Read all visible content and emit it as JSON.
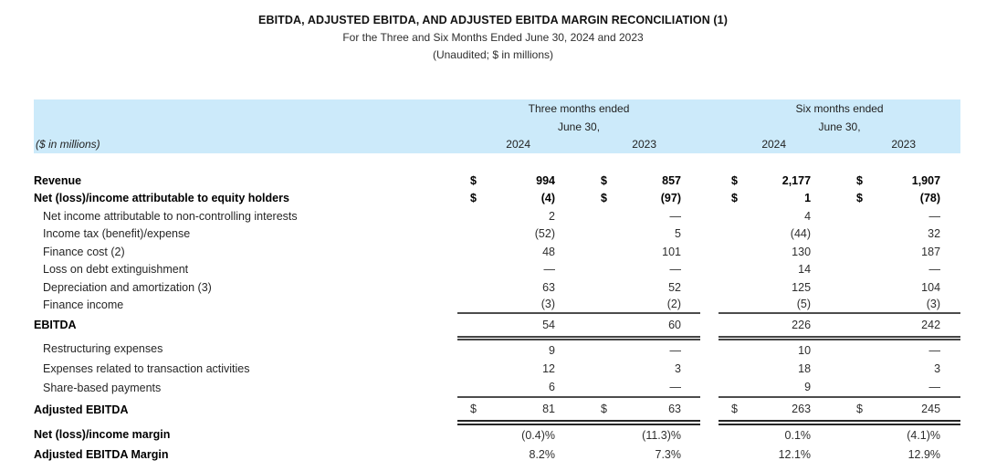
{
  "header": {
    "line1": "EBITDA, ADJUSTED EBITDA, AND ADJUSTED EBITDA MARGIN RECONCILIATION (1)",
    "line2": "For the Three and Six Months Ended June 30, 2024 and 2023",
    "line3": "(Unaudited; $ in millions)"
  },
  "colors": {
    "band_background": "#cceafa",
    "rule_single": "#4c4c4c",
    "rule_double": "#454545",
    "rule_thick": "#262626"
  },
  "table": {
    "header": {
      "caption_left": "($ in millions)",
      "groups": [
        {
          "line1": "Three months ended",
          "line2": "June 30,",
          "years": [
            "2024",
            "2023"
          ]
        },
        {
          "line1": "Six months ended",
          "line2": "June 30,",
          "years": [
            "2024",
            "2023"
          ]
        }
      ]
    },
    "rows": [
      {
        "label": "Revenue",
        "bold": true,
        "dollar": true,
        "bold_values": true,
        "values": [
          "994",
          "857",
          "2,177",
          "1,907"
        ]
      },
      {
        "label": "Net (loss)/income attributable to equity holders",
        "bold": true,
        "dollar": true,
        "bold_values": true,
        "values": [
          "(4)",
          "(97)",
          "1",
          "(78)"
        ]
      },
      {
        "label": "Net income attributable to non-controlling interests",
        "indent": true,
        "values": [
          "2",
          "—",
          "4",
          "—"
        ]
      },
      {
        "label": "Income tax (benefit)/expense",
        "indent": true,
        "values": [
          "(52)",
          "5",
          "(44)",
          "32"
        ]
      },
      {
        "label": "Finance cost (2)",
        "indent": true,
        "values": [
          "48",
          "101",
          "130",
          "187"
        ]
      },
      {
        "label": "Loss on debt extinguishment",
        "indent": true,
        "values": [
          "—",
          "—",
          "14",
          "—"
        ]
      },
      {
        "label": "Depreciation and amortization (3)",
        "indent": true,
        "values": [
          "63",
          "52",
          "125",
          "104"
        ]
      },
      {
        "label": "Finance income",
        "indent": true,
        "values": [
          "(3)",
          "(2)",
          "(5)",
          "(3)"
        ],
        "rule": "single"
      },
      {
        "label": "EBITDA",
        "bold": true,
        "values": [
          "54",
          "60",
          "226",
          "242"
        ],
        "rule": "double"
      },
      {
        "label": "Restructuring expenses",
        "indent": true,
        "values": [
          "9",
          "—",
          "10",
          "—"
        ]
      },
      {
        "label": "Expenses related to transaction activities",
        "indent": true,
        "values": [
          "12",
          "3",
          "18",
          "3"
        ]
      },
      {
        "label": "Share-based payments",
        "indent": true,
        "values": [
          "6",
          "—",
          "9",
          "—"
        ],
        "rule": "single"
      },
      {
        "label": "Adjusted EBITDA",
        "bold": true,
        "dollar": true,
        "values": [
          "81",
          "63",
          "263",
          "245"
        ],
        "rule": "thick"
      },
      {
        "label": "Net (loss)/income margin",
        "bold": true,
        "values": [
          "(0.4)%",
          "(11.3)%",
          "0.1%",
          "(4.1)%"
        ]
      },
      {
        "label": "Adjusted EBITDA Margin",
        "bold": true,
        "values": [
          "8.2%",
          "7.3%",
          "12.1%",
          "12.9%"
        ]
      }
    ]
  }
}
